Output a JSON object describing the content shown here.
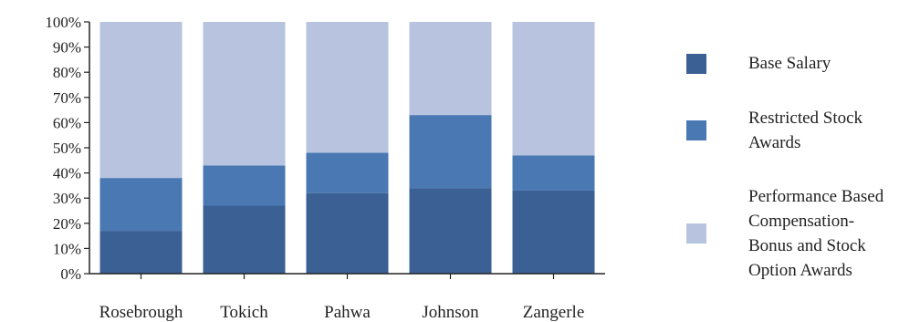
{
  "chart_data": {
    "type": "bar",
    "stacked": true,
    "categories": [
      "Rosebrough",
      "Tokich",
      "Pahwa",
      "Johnson",
      "Zangerle"
    ],
    "series": [
      {
        "name": "Base Salary",
        "color": "#3a6094",
        "values": [
          17,
          27,
          32,
          34,
          33
        ]
      },
      {
        "name": "Restricted Stock Awards",
        "color": "#4a78b2",
        "values": [
          21,
          16,
          16,
          29,
          14
        ]
      },
      {
        "name": "Performance Based Compensation-Bonus and Stock Option Awards",
        "color": "#b7c3df",
        "values": [
          62,
          57,
          52,
          37,
          53
        ]
      }
    ],
    "y_ticks": [
      "0%",
      "10%",
      "20%",
      "30%",
      "40%",
      "50%",
      "60%",
      "70%",
      "80%",
      "90%",
      "100%"
    ],
    "ylim": [
      0,
      100
    ],
    "grid": false,
    "legend_position": "right"
  },
  "legend": [
    {
      "label": "Base Salary",
      "color": "#3a6094"
    },
    {
      "label": "Restricted Stock\nAwards",
      "color": "#4a78b2"
    },
    {
      "label": "Performance Based\nCompensation-\nBonus and Stock\nOption Awards",
      "color": "#b7c3df"
    }
  ]
}
